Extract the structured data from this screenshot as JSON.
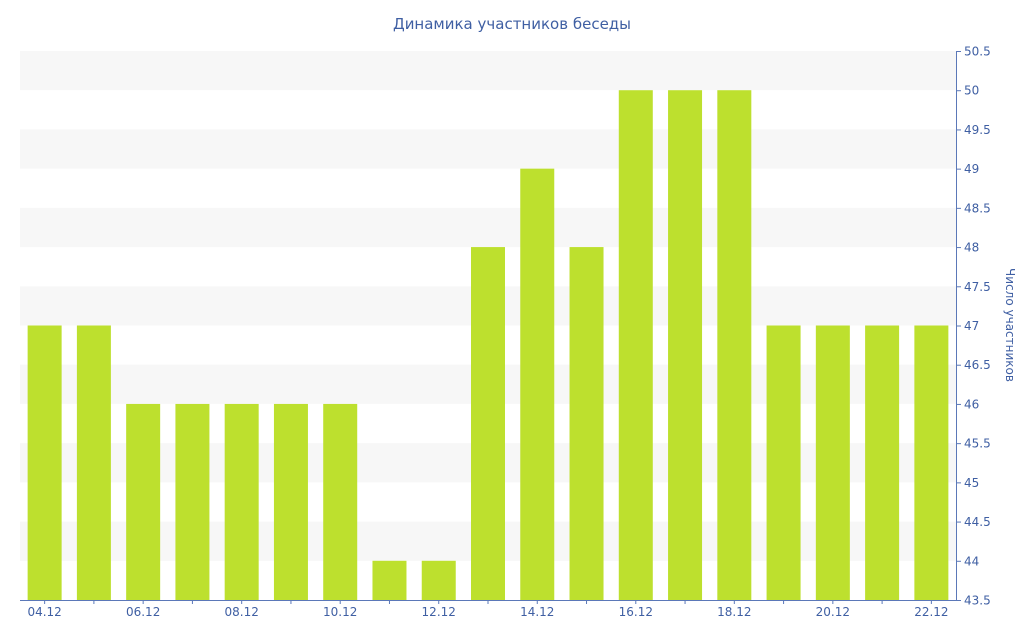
{
  "colors": {
    "bar": "#bde02e",
    "text": "#3f5fa3",
    "stripe": "#f7f7f7",
    "axis": "#5b78b8"
  },
  "chart_data": {
    "type": "bar",
    "title": "Динамика участников беседы",
    "xlabel": "",
    "ylabel": "Число участников",
    "y_axis_side": "right",
    "ylim": [
      43.5,
      50.5
    ],
    "y_ticks": [
      "43.5",
      "44",
      "44.5",
      "45",
      "45.5",
      "46",
      "46.5",
      "47",
      "47.5",
      "48",
      "48.5",
      "49",
      "49.5",
      "50",
      "50.5"
    ],
    "grid": "alternating horizontal bands",
    "categories": [
      "04.12",
      "05.12",
      "06.12",
      "07.12",
      "08.12",
      "09.12",
      "10.12",
      "11.12",
      "12.12",
      "13.12",
      "14.12",
      "15.12",
      "16.12",
      "17.12",
      "18.12",
      "19.12",
      "20.12",
      "21.12",
      "22.12"
    ],
    "x_tick_labels": [
      "04.12",
      "",
      "06.12",
      "",
      "08.12",
      "",
      "10.12",
      "",
      "12.12",
      "",
      "14.12",
      "",
      "16.12",
      "",
      "18.12",
      "",
      "20.12",
      "",
      "22.12"
    ],
    "values": [
      47,
      47,
      46,
      46,
      46,
      46,
      46,
      44,
      44,
      48,
      49,
      48,
      50,
      50,
      50,
      47,
      47,
      47,
      47
    ]
  }
}
